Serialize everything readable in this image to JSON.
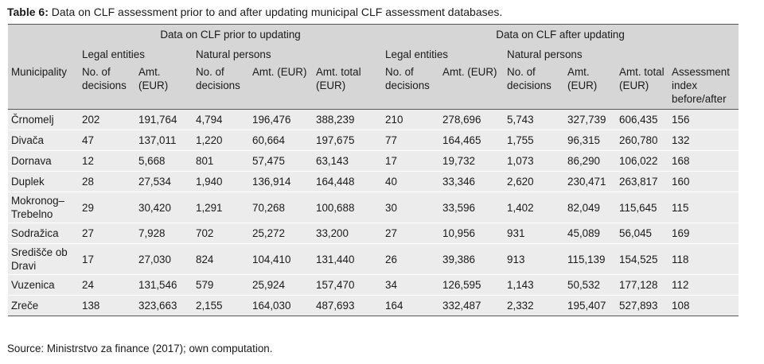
{
  "caption": {
    "label": "Table 6:",
    "text": " Data on CLF assessment prior to and after updating municipal CLF assessment databases."
  },
  "headers": {
    "group_prior": "Data on CLF prior to updating",
    "group_after": "Data on CLF after updating",
    "legal_prior": "Legal entities",
    "natural_prior": "Natural persons",
    "legal_after": "Legal entities",
    "natural_after": "Natural persons",
    "columns": [
      "Municipality",
      "No. of decisions",
      "Amt. (EUR)",
      "No. of decisions",
      "Amt. (EUR)",
      "Amt. total (EUR)",
      "No. of decisions",
      "Amt. (EUR)",
      "No. of decisions",
      "Amt. (EUR)",
      "Amt. total (EUR)",
      "Assessment index before/after"
    ]
  },
  "rows": [
    [
      "Črnomelj",
      "202",
      "191,764",
      "4,794",
      "196,476",
      "388,239",
      "210",
      "278,696",
      "5,743",
      "327,739",
      "606,435",
      "156"
    ],
    [
      "Divača",
      "47",
      "137,011",
      "1,220",
      "60,664",
      "197,675",
      "77",
      "164,465",
      "1,755",
      "96,315",
      "260,780",
      "132"
    ],
    [
      "Dornava",
      "12",
      "5,668",
      "801",
      "57,475",
      "63,143",
      "17",
      "19,732",
      "1,073",
      "86,290",
      "106,022",
      "168"
    ],
    [
      "Duplek",
      "28",
      "27,534",
      "1,940",
      "136,914",
      "164,448",
      "40",
      "33,346",
      "2,620",
      "230,471",
      "263,817",
      "160"
    ],
    [
      "Mokronog–Trebelno",
      "29",
      "30,420",
      "1,291",
      "70,268",
      "100,688",
      "30",
      "33,596",
      "1,402",
      "82,049",
      "115,645",
      "115"
    ],
    [
      "Sodražica",
      "27",
      "7,928",
      "702",
      "25,272",
      "33,200",
      "27",
      "10,956",
      "931",
      "45,089",
      "56,045",
      "169"
    ],
    [
      "Središče ob Dravi",
      "17",
      "27,030",
      "824",
      "104,410",
      "131,440",
      "26",
      "39,386",
      "913",
      "115,139",
      "154,525",
      "118"
    ],
    [
      "Vuzenica",
      "24",
      "131,546",
      "579",
      "25,924",
      "157,470",
      "34",
      "126,595",
      "1,143",
      "50,532",
      "177,128",
      "112"
    ],
    [
      "Zreče",
      "138",
      "323,663",
      "2,155",
      "164,030",
      "487,693",
      "164",
      "332,487",
      "2,332",
      "195,407",
      "527,893",
      "108"
    ]
  ],
  "source": "Source: Ministrstvo za finance (2017); own computation."
}
